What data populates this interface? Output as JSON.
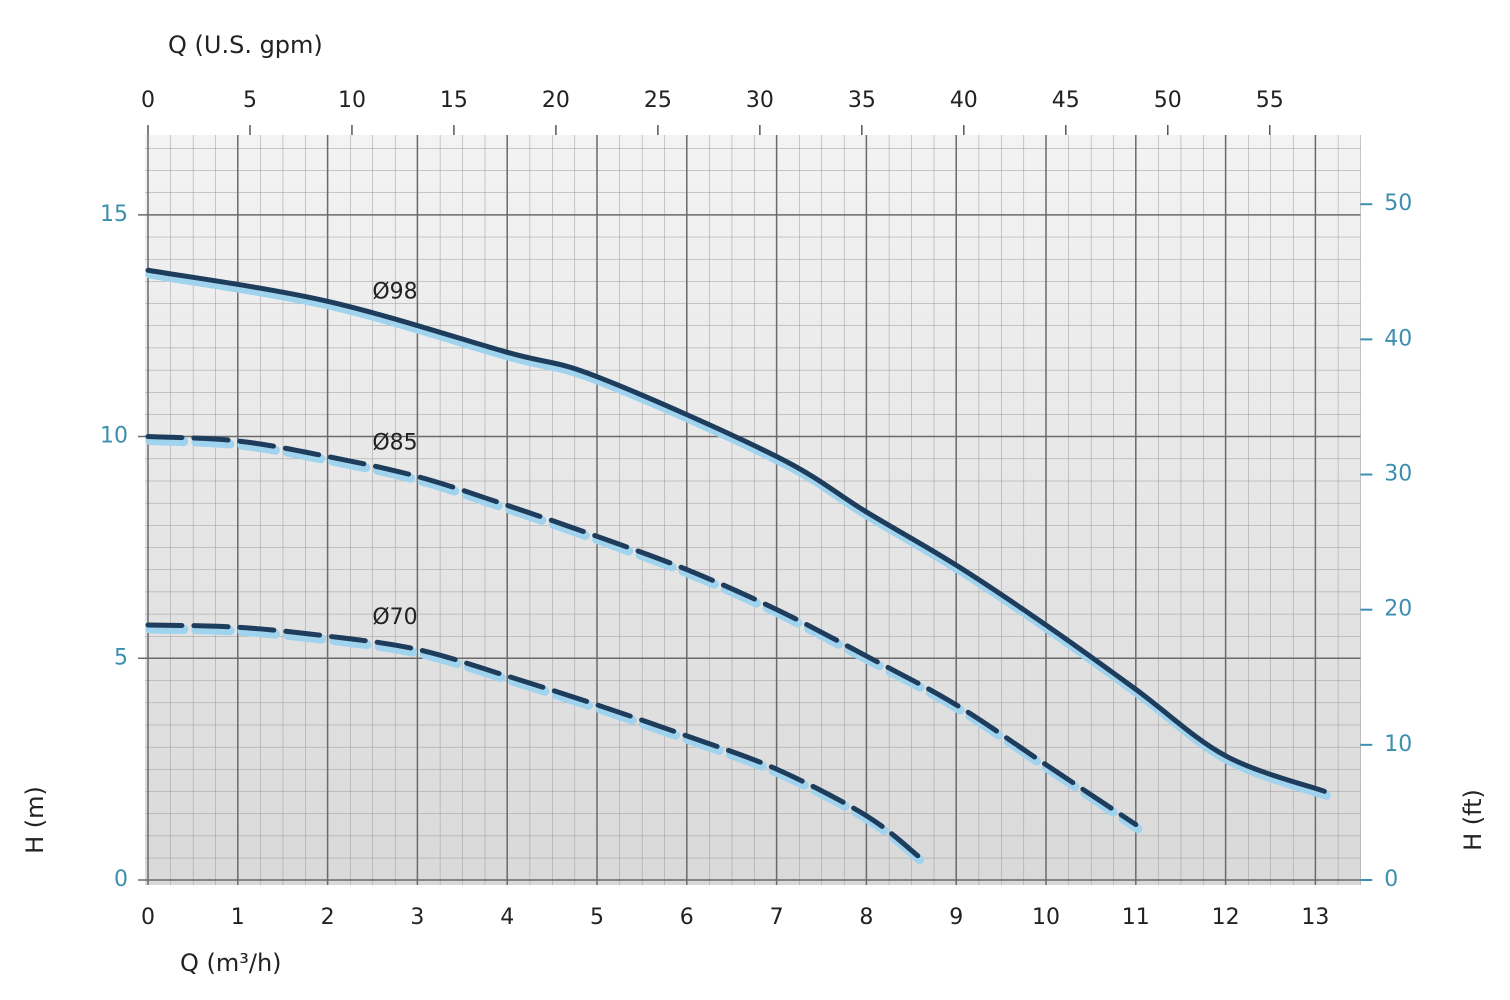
{
  "chart_data": {
    "type": "line",
    "x_label": "Q (m³/h)",
    "x2_label": "Q (U.S. gpm)",
    "y_label": "H (m)",
    "y2_label": "H (ft)",
    "xlim": [
      0,
      13.5
    ],
    "xticks": [
      0,
      1,
      2,
      3,
      4,
      5,
      6,
      7,
      8,
      9,
      10,
      11,
      12,
      13
    ],
    "x2lim": [
      0,
      59.44
    ],
    "x2ticks": [
      0,
      5,
      10,
      15,
      20,
      25,
      30,
      35,
      40,
      45,
      50,
      55
    ],
    "ylim": [
      0,
      16.8
    ],
    "yticks": [
      0,
      5,
      10,
      15
    ],
    "y2lim": [
      0,
      55.12
    ],
    "y2ticks": [
      0,
      10,
      20,
      30,
      40,
      50
    ],
    "grid": true,
    "series": [
      {
        "name": "Ø98",
        "color": "#1e3d5c",
        "dashed": false,
        "x": [
          0,
          2,
          4,
          5,
          7,
          8,
          9,
          10,
          11,
          12,
          13.1
        ],
        "values": [
          13.75,
          13.05,
          11.9,
          11.35,
          9.55,
          8.3,
          7.1,
          5.75,
          4.3,
          2.8,
          2.0
        ]
      },
      {
        "name": "Ø85",
        "color": "#1e3d5c",
        "dashed": true,
        "x": [
          0,
          1,
          2,
          3,
          4,
          5,
          6,
          7,
          8,
          9,
          10,
          11
        ],
        "values": [
          10.0,
          9.9,
          9.55,
          9.1,
          8.45,
          7.75,
          7.0,
          6.1,
          5.05,
          3.95,
          2.6,
          1.25
        ]
      },
      {
        "name": "Ø70",
        "color": "#1e3d5c",
        "dashed": true,
        "x": [
          0,
          1,
          2,
          3,
          4,
          5,
          6,
          7,
          8,
          8.6
        ],
        "values": [
          5.75,
          5.7,
          5.5,
          5.2,
          4.6,
          3.95,
          3.25,
          2.5,
          1.45,
          0.5
        ]
      }
    ]
  }
}
